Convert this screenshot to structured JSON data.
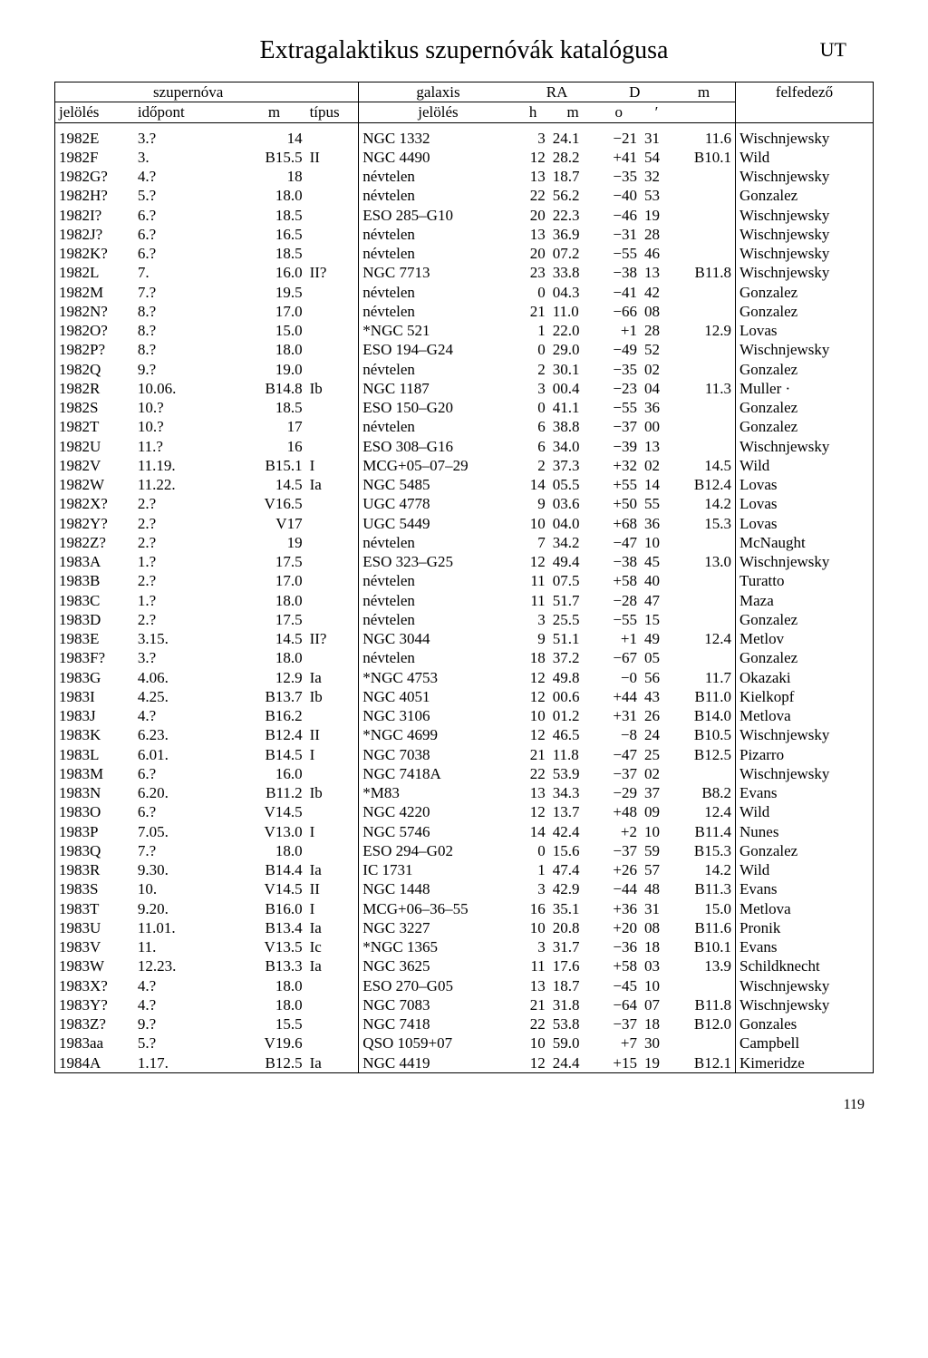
{
  "title": "Extragalaktikus szupernóvák katalógusa",
  "title_right": "UT",
  "page_number": "119",
  "headers": {
    "szupernova": "szupernóva",
    "jeloles": "jelölés",
    "idopont": "időpont",
    "m": "m",
    "tipus": "típus",
    "galaxis": "galaxis",
    "gal_jeloles": "jelölés",
    "RA": "RA",
    "h": "h",
    "m2": "m",
    "D": "D",
    "deg": "o",
    "min": "′",
    "m3": "m",
    "felfedezo": "felfedező"
  },
  "rows": [
    [
      "1982E",
      "3.?",
      "14",
      "",
      "NGC 1332",
      "3",
      "24.1",
      "−21",
      "31",
      "11.6",
      "Wischnjewsky"
    ],
    [
      "1982F",
      "3.",
      "B15.5",
      "II",
      "NGC 4490",
      "12",
      "28.2",
      "+41",
      "54",
      "B10.1",
      "Wild"
    ],
    [
      "1982G?",
      "4.?",
      "18",
      "",
      "névtelen",
      "13",
      "18.7",
      "−35",
      "32",
      "",
      "Wischnjewsky"
    ],
    [
      "1982H?",
      "5.?",
      "18.0",
      "",
      "névtelen",
      "22",
      "56.2",
      "−40",
      "53",
      "",
      "Gonzalez"
    ],
    [
      "1982I?",
      "6.?",
      "18.5",
      "",
      "ESO 285–G10",
      "20",
      "22.3",
      "−46",
      "19",
      "",
      "Wischnjewsky"
    ],
    [
      "1982J?",
      "6.?",
      "16.5",
      "",
      "névtelen",
      "13",
      "36.9",
      "−31",
      "28",
      "",
      "Wischnjewsky"
    ],
    [
      "1982K?",
      "6.?",
      "18.5",
      "",
      "névtelen",
      "20",
      "07.2",
      "−55",
      "46",
      "",
      "Wischnjewsky"
    ],
    [
      "1982L",
      "7.",
      "16.0",
      "II?",
      "NGC 7713",
      "23",
      "33.8",
      "−38",
      "13",
      "B11.8",
      "Wischnjewsky"
    ],
    [
      "1982M",
      "7.?",
      "19.5",
      "",
      "névtelen",
      "0",
      "04.3",
      "−41",
      "42",
      "",
      "Gonzalez"
    ],
    [
      "1982N?",
      "8.?",
      "17.0",
      "",
      "névtelen",
      "21",
      "11.0",
      "−66",
      "08",
      "",
      "Gonzalez"
    ],
    [
      "1982O?",
      "8.?",
      "15.0",
      "",
      "*NGC 521",
      "1",
      "22.0",
      "+1",
      "28",
      "12.9",
      "Lovas"
    ],
    [
      "1982P?",
      "8.?",
      "18.0",
      "",
      "ESO 194–G24",
      "0",
      "29.0",
      "−49",
      "52",
      "",
      "Wischnjewsky"
    ],
    [
      "1982Q",
      "9.?",
      "19.0",
      "",
      "névtelen",
      "2",
      "30.1",
      "−35",
      "02",
      "",
      "Gonzalez"
    ],
    [
      "1982R",
      "10.06.",
      "B14.8",
      "Ib",
      "NGC 1187",
      "3",
      "00.4",
      "−23",
      "04",
      "11.3",
      "Muller ·"
    ],
    [
      "1982S",
      "10.?",
      "18.5",
      "",
      "ESO 150–G20",
      "0",
      "41.1",
      "−55",
      "36",
      "",
      "Gonzalez"
    ],
    [
      "1982T",
      "10.?",
      "17",
      "",
      "névtelen",
      "6",
      "38.8",
      "−37",
      "00",
      "",
      "Gonzalez"
    ],
    [
      "1982U",
      "11.?",
      "16",
      "",
      "ESO 308–G16",
      "6",
      "34.0",
      "−39",
      "13",
      "",
      "Wischnjewsky"
    ],
    [
      "1982V",
      "11.19.",
      "B15.1",
      "I",
      "MCG+05–07–29",
      "2",
      "37.3",
      "+32",
      "02",
      "14.5",
      "Wild"
    ],
    [
      "1982W",
      "11.22.",
      "14.5",
      "Ia",
      "NGC 5485",
      "14",
      "05.5",
      "+55",
      "14",
      "B12.4",
      "Lovas"
    ],
    [
      "1982X?",
      "2.?",
      "V16.5",
      "",
      "UGC 4778",
      "9",
      "03.6",
      "+50",
      "55",
      "14.2",
      "Lovas"
    ],
    [
      "1982Y?",
      "2.?",
      "V17",
      "",
      "UGC 5449",
      "10",
      "04.0",
      "+68",
      "36",
      "15.3",
      "Lovas"
    ],
    [
      "1982Z?",
      "2.?",
      "19",
      "",
      "névtelen",
      "7",
      "34.2",
      "−47",
      "10",
      "",
      "McNaught"
    ],
    [
      "1983A",
      "1.?",
      "17.5",
      "",
      "ESO 323–G25",
      "12",
      "49.4",
      "−38",
      "45",
      "13.0",
      "Wischnjewsky"
    ],
    [
      "1983B",
      "2.?",
      "17.0",
      "",
      "névtelen",
      "11",
      "07.5",
      "+58",
      "40",
      "",
      "Turatto"
    ],
    [
      "1983C",
      "1.?",
      "18.0",
      "",
      "névtelen",
      "11",
      "51.7",
      "−28",
      "47",
      "",
      "Maza"
    ],
    [
      "1983D",
      "2.?",
      "17.5",
      "",
      "névtelen",
      "3",
      "25.5",
      "−55",
      "15",
      "",
      "Gonzalez"
    ],
    [
      "1983E",
      "3.15.",
      "14.5",
      "II?",
      "NGC 3044",
      "9",
      "51.1",
      "+1",
      "49",
      "12.4",
      "Metlov"
    ],
    [
      "1983F?",
      "3.?",
      "18.0",
      "",
      "névtelen",
      "18",
      "37.2",
      "−67",
      "05",
      "",
      "Gonzalez"
    ],
    [
      "1983G",
      "4.06.",
      "12.9",
      "Ia",
      "*NGC 4753",
      "12",
      "49.8",
      "−0",
      "56",
      "11.7",
      "Okazaki"
    ],
    [
      "1983I",
      "4.25.",
      "B13.7",
      "Ib",
      "NGC 4051",
      "12",
      "00.6",
      "+44",
      "43",
      "B11.0",
      "Kielkopf"
    ],
    [
      "1983J",
      "4.?",
      "B16.2",
      "",
      "NGC 3106",
      "10",
      "01.2",
      "+31",
      "26",
      "B14.0",
      "Metlova"
    ],
    [
      "1983K",
      "6.23.",
      "B12.4",
      "II",
      "*NGC 4699",
      "12",
      "46.5",
      "−8",
      "24",
      "B10.5",
      "Wischnjewsky"
    ],
    [
      "1983L",
      "6.01.",
      "B14.5",
      "I",
      "NGC 7038",
      "21",
      "11.8",
      "−47",
      "25",
      "B12.5",
      "Pizarro"
    ],
    [
      "1983M",
      "6.?",
      "16.0",
      "",
      "NGC 7418A",
      "22",
      "53.9",
      "−37",
      "02",
      "",
      "Wischnjewsky"
    ],
    [
      "1983N",
      "6.20.",
      "B11.2",
      "Ib",
      "*M83",
      "13",
      "34.3",
      "−29",
      "37",
      "B8.2",
      "Evans"
    ],
    [
      "1983O",
      "6.?",
      "V14.5",
      "",
      "NGC 4220",
      "12",
      "13.7",
      "+48",
      "09",
      "12.4",
      "Wild"
    ],
    [
      "1983P",
      "7.05.",
      "V13.0",
      "I",
      "NGC 5746",
      "14",
      "42.4",
      "+2",
      "10",
      "B11.4",
      "Nunes"
    ],
    [
      "1983Q",
      "7.?",
      "18.0",
      "",
      "ESO 294–G02",
      "0",
      "15.6",
      "−37",
      "59",
      "B15.3",
      "Gonzalez"
    ],
    [
      "1983R",
      "9.30.",
      "B14.4",
      "Ia",
      "IC 1731",
      "1",
      "47.4",
      "+26",
      "57",
      "14.2",
      "Wild"
    ],
    [
      "1983S",
      "10.",
      "V14.5",
      "II",
      "NGC 1448",
      "3",
      "42.9",
      "−44",
      "48",
      "B11.3",
      "Evans"
    ],
    [
      "1983T",
      "9.20.",
      "B16.0",
      "I",
      "MCG+06–36–55",
      "16",
      "35.1",
      "+36",
      "31",
      "15.0",
      "Metlova"
    ],
    [
      "1983U",
      "11.01.",
      "B13.4",
      "Ia",
      "NGC 3227",
      "10",
      "20.8",
      "+20",
      "08",
      "B11.6",
      "Pronik"
    ],
    [
      "1983V",
      "11.",
      "V13.5",
      "Ic",
      "*NGC 1365",
      "3",
      "31.7",
      "−36",
      "18",
      "B10.1",
      "Evans"
    ],
    [
      "1983W",
      "12.23.",
      "B13.3",
      "Ia",
      "NGC 3625",
      "11",
      "17.6",
      "+58",
      "03",
      "13.9",
      "Schildknecht"
    ],
    [
      "1983X?",
      "4.?",
      "18.0",
      "",
      "ESO 270–G05",
      "13",
      "18.7",
      "−45",
      "10",
      "",
      "Wischnjewsky"
    ],
    [
      "1983Y?",
      "4.?",
      "18.0",
      "",
      "NGC 7083",
      "21",
      "31.8",
      "−64",
      "07",
      "B11.8",
      "Wischnjewsky"
    ],
    [
      "1983Z?",
      "9.?",
      "15.5",
      "",
      "NGC 7418",
      "22",
      "53.8",
      "−37",
      "18",
      "B12.0",
      "Gonzales"
    ],
    [
      "1983aa",
      "5.?",
      "V19.6",
      "",
      "QSO 1059+07",
      "10",
      "59.0",
      "+7",
      "30",
      "",
      "Campbell"
    ],
    [
      "1984A",
      "1.17.",
      "B12.5",
      "Ia",
      "NGC 4419",
      "12",
      "24.4",
      "+15",
      "19",
      "B12.1",
      "Kimeridze"
    ]
  ]
}
